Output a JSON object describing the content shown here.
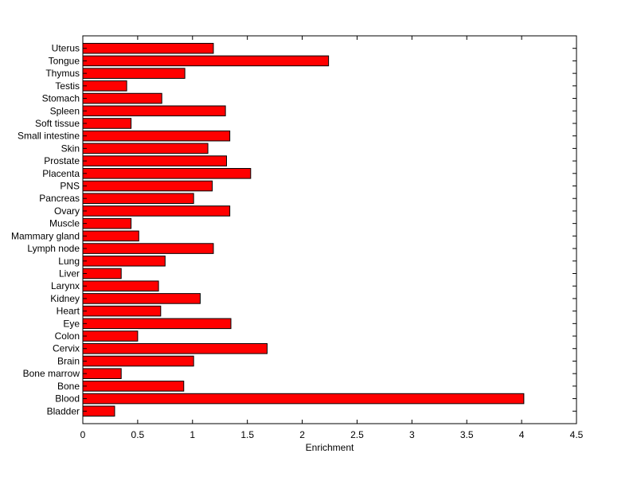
{
  "chart_data": {
    "type": "bar",
    "orientation": "horizontal",
    "title": "",
    "xlabel": "Enrichment",
    "ylabel": "",
    "xlim": [
      0,
      4.5
    ],
    "xticks": [
      "0",
      "0.5",
      "1",
      "1.5",
      "2",
      "2.5",
      "3",
      "3.5",
      "4",
      "4.5"
    ],
    "grid": false,
    "bar_color": "#ff0000",
    "categories": [
      "Bladder",
      "Blood",
      "Bone",
      "Bone marrow",
      "Brain",
      "Cervix",
      "Colon",
      "Eye",
      "Heart",
      "Kidney",
      "Larynx",
      "Liver",
      "Lung",
      "Lymph node",
      "Mammary gland",
      "Muscle",
      "Ovary",
      "Pancreas",
      "PNS",
      "Placenta",
      "Prostate",
      "Skin",
      "Small intestine",
      "Soft tissue",
      "Spleen",
      "Stomach",
      "Testis",
      "Thymus",
      "Tongue",
      "Uterus"
    ],
    "values": [
      0.29,
      4.02,
      0.92,
      0.35,
      1.01,
      1.68,
      0.5,
      1.35,
      0.71,
      1.07,
      0.69,
      0.35,
      0.75,
      1.19,
      0.51,
      0.44,
      1.34,
      1.01,
      1.18,
      1.53,
      1.31,
      1.14,
      1.34,
      0.44,
      1.3,
      0.72,
      0.4,
      0.93,
      2.24,
      1.19
    ]
  }
}
